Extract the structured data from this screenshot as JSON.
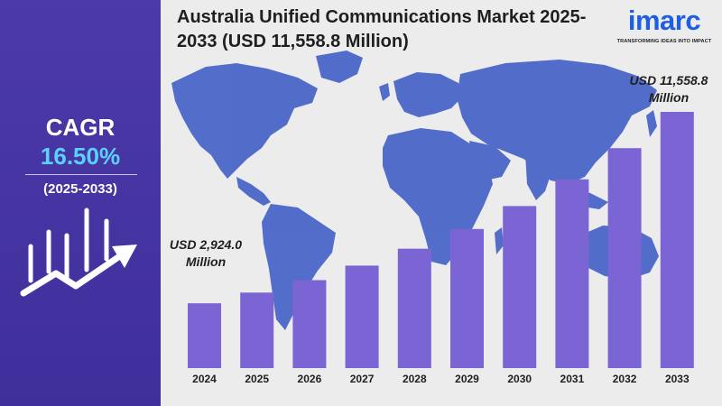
{
  "title": "Australia Unified Communications Market 2025-2033 (USD 11,558.8 Million)",
  "cagr": {
    "label": "CAGR",
    "value": "16.50%",
    "period": "(2025-2033)"
  },
  "logo": {
    "word": "imarc",
    "tagline": "TRANSFORMING IDEAS INTO IMPACT"
  },
  "callouts": {
    "start": "USD 2,924.0 Million",
    "end": "USD 11,558.8 Million"
  },
  "colors": {
    "panel": "#4b3aa8",
    "bar": "#7b64d3",
    "map": "#4a66c8",
    "cagr_value": "#5ad1ff",
    "background": "#ececec"
  },
  "icons": [
    "growth-chart-icon",
    "world-map"
  ],
  "chart_data": {
    "type": "bar",
    "categories": [
      "2024",
      "2025",
      "2026",
      "2027",
      "2028",
      "2029",
      "2030",
      "2031",
      "2032",
      "2033"
    ],
    "values": [
      2924.0,
      3406.5,
      3968.6,
      4623.4,
      5386.3,
      6275.0,
      7310.4,
      8516.6,
      9921.9,
      11558.8
    ],
    "units": "USD Million",
    "ylim": [
      0,
      11558.8
    ],
    "grid": false,
    "legend": "none"
  }
}
